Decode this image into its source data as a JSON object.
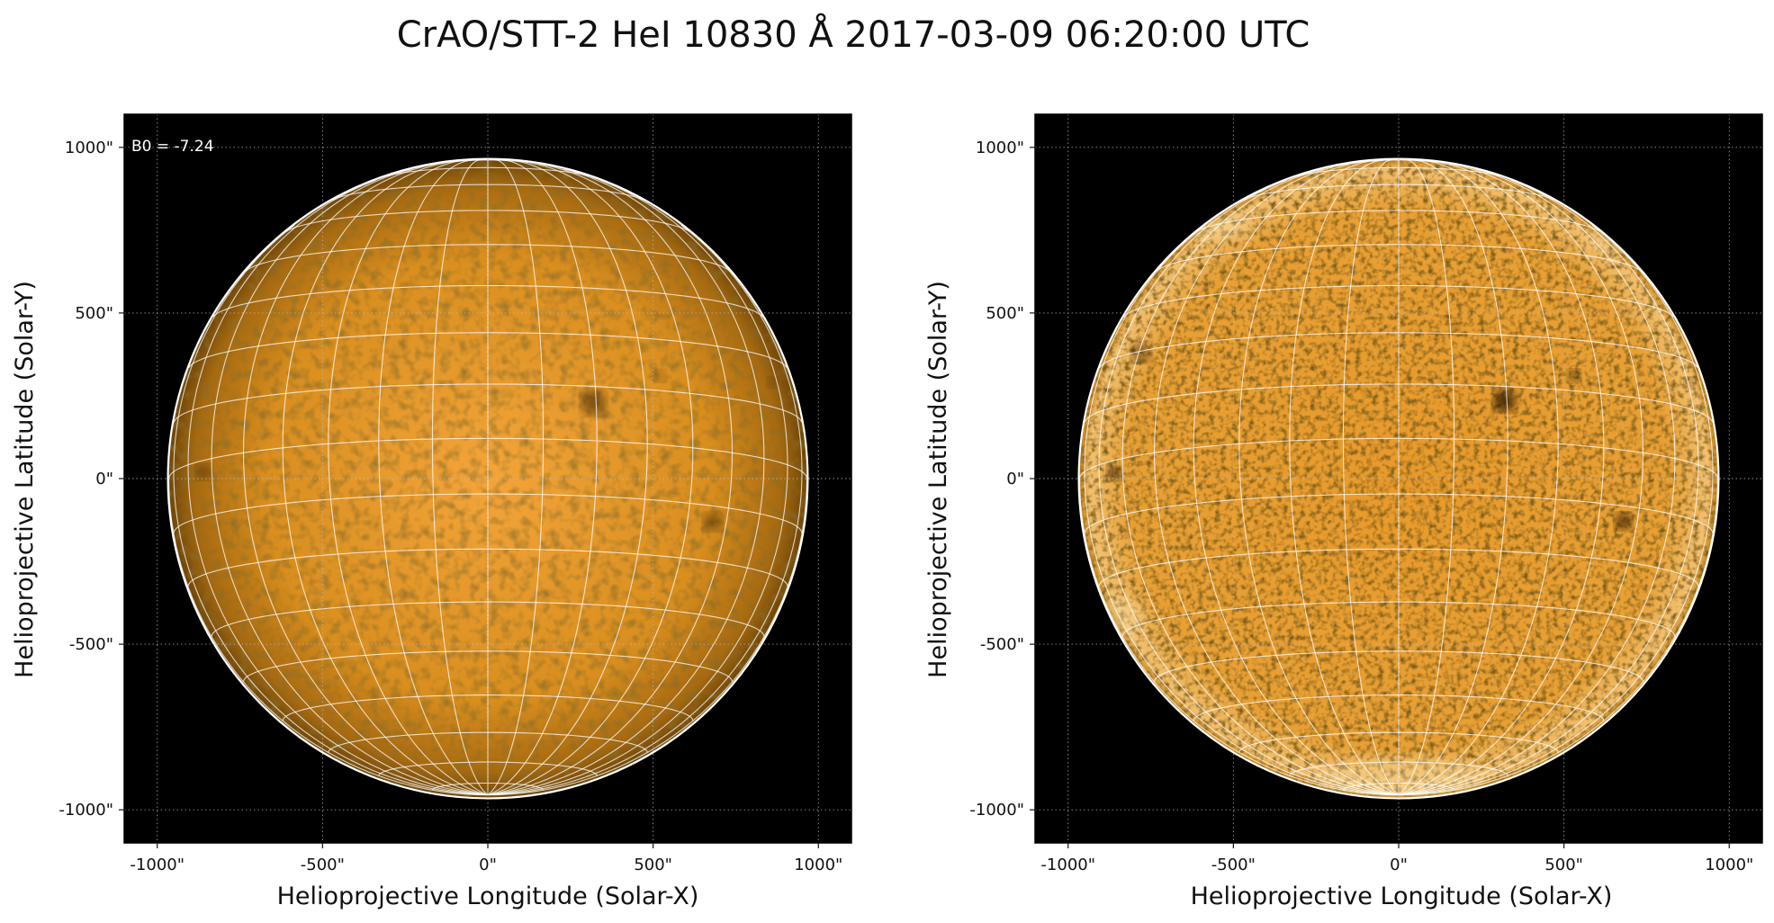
{
  "figure": {
    "title": "CrAO/STT-2 HeI 10830 Å 2017-03-09 06:20:00 UTC",
    "colors": {
      "background": "#000000",
      "disk_bright": "#f4a53a",
      "disk_mid": "#d98e1e",
      "disk_limb": "#6e4508",
      "grid_line": "#ffffff",
      "frame": "#000000"
    }
  },
  "panels": [
    {
      "id": "left",
      "annotation": "B0 = -7.24",
      "xlabel": "Helioprojective Longitude (Solar-X)",
      "ylabel": "Helioprojective Latitude (Solar-Y)",
      "xlim": [
        -1100,
        1100
      ],
      "ylim": [
        -1100,
        1100
      ],
      "ticks": [
        -1000,
        -500,
        0,
        500,
        1000
      ],
      "tick_labels": [
        "-1000\"",
        "-500\"",
        "0\"",
        "500\"",
        "1000\""
      ],
      "grid": true,
      "solar_radius_arcsec": 965,
      "b0_deg": -7.24,
      "style": "smooth",
      "features": [
        {
          "x": 320,
          "y": 230,
          "r": 38,
          "strength": 0.55
        },
        {
          "x": 680,
          "y": -130,
          "r": 28,
          "strength": 0.5
        },
        {
          "x": -860,
          "y": 20,
          "r": 24,
          "strength": 0.45
        },
        {
          "x": 520,
          "y": 310,
          "r": 18,
          "strength": 0.3
        },
        {
          "x": 170,
          "y": 440,
          "r": 16,
          "strength": 0.25
        },
        {
          "x": -150,
          "y": -210,
          "r": 14,
          "strength": 0.2
        },
        {
          "x": 860,
          "y": 290,
          "r": 16,
          "strength": 0.3
        }
      ]
    },
    {
      "id": "right",
      "annotation": "",
      "xlabel": "Helioprojective Longitude (Solar-X)",
      "ylabel": "Helioprojective Latitude (Solar-Y)",
      "xlim": [
        -1100,
        1100
      ],
      "ylim": [
        -1100,
        1100
      ],
      "ticks": [
        -1000,
        -500,
        0,
        500,
        1000
      ],
      "tick_labels": [
        "-1000\"",
        "-500\"",
        "0\"",
        "500\"",
        "1000\""
      ],
      "grid": true,
      "solar_radius_arcsec": 965,
      "b0_deg": -7.24,
      "style": "enhanced",
      "features": [
        {
          "x": 320,
          "y": 235,
          "r": 34,
          "strength": 0.85
        },
        {
          "x": 680,
          "y": -130,
          "r": 26,
          "strength": 0.75
        },
        {
          "x": -860,
          "y": 15,
          "r": 22,
          "strength": 0.8
        },
        {
          "x": -780,
          "y": 380,
          "r": 30,
          "strength": 0.5
        },
        {
          "x": 530,
          "y": 310,
          "r": 20,
          "strength": 0.6
        },
        {
          "x": 170,
          "y": 450,
          "r": 16,
          "strength": 0.45
        },
        {
          "x": 880,
          "y": 290,
          "r": 16,
          "strength": 0.55
        },
        {
          "x": -160,
          "y": -220,
          "r": 14,
          "strength": 0.4
        },
        {
          "x": 900,
          "y": 420,
          "r": 14,
          "strength": 0.4
        }
      ]
    }
  ]
}
